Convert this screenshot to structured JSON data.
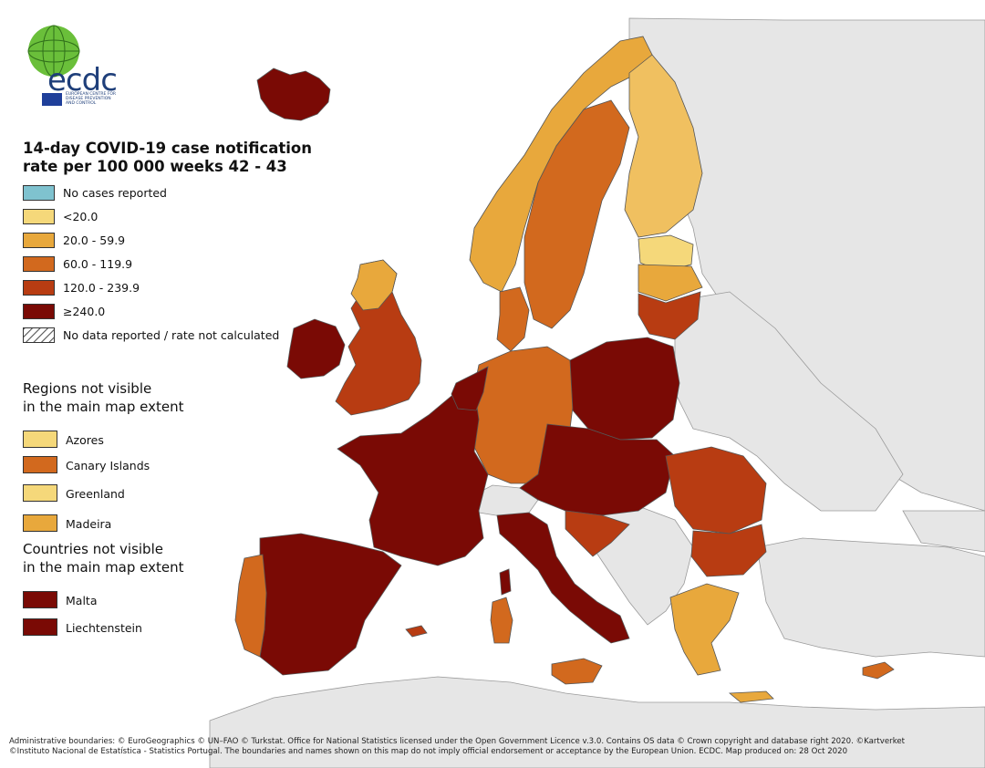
{
  "org": {
    "logo_text": "ecdc",
    "logo_subtitle": "EUROPEAN CENTRE FOR DISEASE PREVENTION AND CONTROL"
  },
  "title": {
    "line1": "14-day COVID-19 case notification",
    "line2": "rate per 100 000 weeks 42 - 43"
  },
  "legend": {
    "items": [
      {
        "label": "No cases reported",
        "color": "#7fc2cf"
      },
      {
        "label": "<20.0",
        "color": "#f5d87a"
      },
      {
        "label": "20.0 - 59.9",
        "color": "#e8a83c"
      },
      {
        "label": "60.0 - 119.9",
        "color": "#d2691e"
      },
      {
        "label": "120.0 - 239.9",
        "color": "#b83c12"
      },
      {
        "label": "≥240.0",
        "color": "#7a0a05"
      },
      {
        "label": "No data reported / rate not calculated",
        "color": "hatched"
      }
    ]
  },
  "regions_not_visible": {
    "heading_line1": "Regions not visible",
    "heading_line2": "in the main map extent",
    "items": [
      {
        "label": "Azores",
        "color": "#f5d87a"
      },
      {
        "label": "Canary Islands",
        "color": "#d2691e"
      },
      {
        "label": "Greenland",
        "color": "#f5d87a"
      },
      {
        "label": "Madeira",
        "color": "#e8a83c"
      }
    ]
  },
  "countries_not_visible": {
    "heading_line1": "Countries not visible",
    "heading_line2": "in the main map extent",
    "items": [
      {
        "label": "Malta",
        "color": "#7a0a05"
      },
      {
        "label": "Liechtenstein",
        "color": "#7a0a05"
      }
    ]
  },
  "colors": {
    "non_eu": "#e6e6e6",
    "sea": "#ffffff",
    "border": "#555555"
  },
  "footer": {
    "line1": "Administrative boundaries: © EuroGeographics © UN–FAO © Turkstat. Office for National Statistics licensed under the Open Government Licence v.3.0. Contains OS data © Crown copyright and database right 2020. ©Kartverket",
    "line2": "©Instituto Nacional de Estatística - Statistics Portugal. The boundaries and names shown on this map do not imply official endorsement or acceptance by the European Union. ECDC. Map produced on: 28 Oct 2020"
  }
}
